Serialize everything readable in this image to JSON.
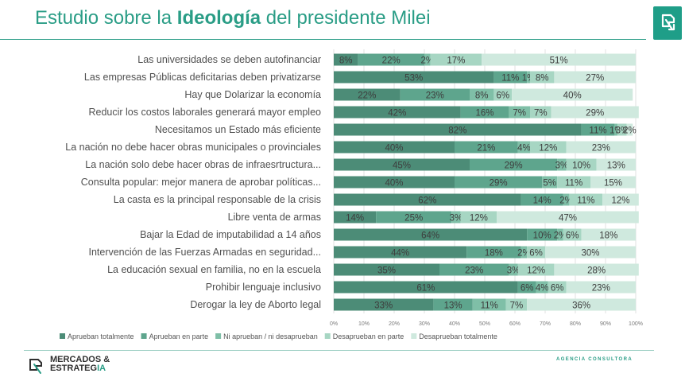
{
  "header": {
    "title_pre": "Estudio sobre la ",
    "title_bold": "Ideología",
    "title_post": " del presidente Milei",
    "logo_icon": "mercados-estrategia-logo-icon"
  },
  "chart_data": {
    "type": "bar",
    "orientation": "horizontal",
    "stacked": true,
    "categories": [
      "Las universidades se deben autofinanciar",
      "Las empresas Públicas deficitarias deben privatizarse",
      "Hay que Dolarizar la economía",
      "Reducir los costos laborales generará mayor empleo",
      "Necesitamos un Estado más eficiente",
      "La nación no debe hacer obras municipales o provinciales",
      "La nación solo debe hacer obras de infraesrtructura...",
      "Consulta popular: mejor manera de aprobar políticas...",
      "La casta es la principal responsable de la crisis",
      "Libre venta de armas",
      "Bajar la Edad de imputabilidad a 14 años",
      "Intervención de las Fuerzas Armadas en seguridad...",
      "La educación sexual en familia, no en la escuela",
      "Prohibir lenguaje inclusivo",
      "Derogar la ley de Aborto legal"
    ],
    "series": [
      {
        "name": "Aprueban totalmente",
        "color": "#4c8c77",
        "values": [
          8,
          53,
          22,
          42,
          82,
          40,
          45,
          40,
          62,
          14,
          64,
          44,
          35,
          61,
          33
        ]
      },
      {
        "name": "Aprueban en parte",
        "color": "#5ea58d",
        "values": [
          22,
          11,
          23,
          16,
          11,
          21,
          29,
          29,
          14,
          25,
          10,
          18,
          23,
          6,
          13
        ]
      },
      {
        "name": "Ni aprueban / ni desaprueban",
        "color": "#7fbfa7",
        "values": [
          2,
          1,
          8,
          7,
          1,
          4,
          3,
          5,
          2,
          3,
          2,
          2,
          3,
          4,
          11
        ]
      },
      {
        "name": "Desaprueban en parte",
        "color": "#a7d6c3",
        "values": [
          17,
          8,
          6,
          7,
          3,
          12,
          10,
          11,
          11,
          12,
          6,
          6,
          12,
          6,
          7
        ]
      },
      {
        "name": "Desaprueban totalmente",
        "color": "#cfe9de",
        "values": [
          51,
          27,
          40,
          29,
          2,
          23,
          13,
          15,
          12,
          47,
          18,
          30,
          28,
          23,
          36
        ]
      }
    ],
    "x_ticks": [
      "0%",
      "10%",
      "20%",
      "30%",
      "40%",
      "50%",
      "60%",
      "70%",
      "80%",
      "90%",
      "100%"
    ],
    "xlim": [
      0,
      100
    ],
    "grid": true,
    "legend_position": "bottom"
  },
  "footer": {
    "brand_line1": "MERCADOS &",
    "brand_line2_main": "ESTRATEG",
    "brand_line2_accent": "IA",
    "agency": "AGENCIA CONSULTORA"
  }
}
